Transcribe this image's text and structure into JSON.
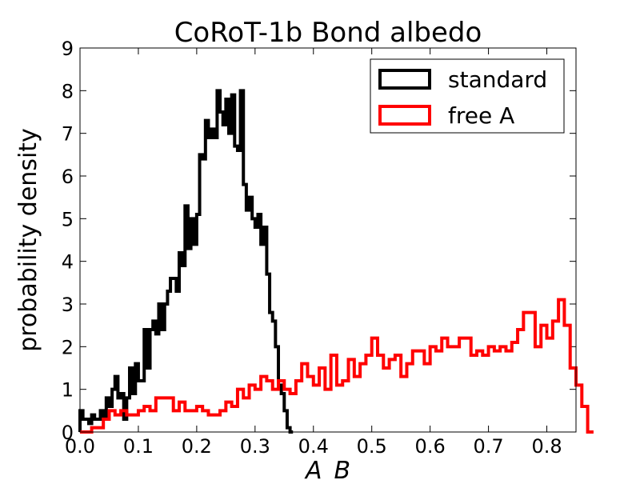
{
  "chart_data": {
    "type": "histogram-step",
    "title": "CoRoT-1b Bond albedo",
    "xlabel": "A_B",
    "ylabel": "probability density",
    "xlim": [
      0.0,
      0.85
    ],
    "ylim": [
      0,
      9
    ],
    "xticks": [
      "0.0",
      "0.1",
      "0.2",
      "0.3",
      "0.4",
      "0.5",
      "0.6",
      "0.7",
      "0.8"
    ],
    "yticks": [
      "0",
      "1",
      "2",
      "3",
      "4",
      "5",
      "6",
      "7",
      "8",
      "9"
    ],
    "legend_position": "top-right",
    "grid": false,
    "series": [
      {
        "name": "standard",
        "color": "#000000",
        "bin_start": 0.0,
        "bin_width": 0.005,
        "values": [
          0.5,
          0.3,
          0.3,
          0.2,
          0.4,
          0.3,
          0.3,
          0.5,
          0.3,
          0.8,
          0.6,
          1.0,
          1.3,
          0.8,
          0.9,
          0.3,
          0.8,
          1.5,
          0.9,
          1.6,
          1.2,
          1.2,
          2.4,
          1.5,
          2.4,
          2.6,
          2.3,
          3.0,
          2.4,
          3.0,
          3.3,
          3.6,
          3.6,
          3.3,
          4.2,
          3.9,
          5.3,
          4.3,
          5.0,
          4.4,
          5.1,
          6.5,
          6.4,
          7.3,
          6.9,
          7.1,
          6.9,
          8.0,
          7.5,
          7.2,
          7.8,
          7.0,
          7.9,
          6.7,
          6.6,
          8.0,
          5.8,
          5.2,
          5.5,
          5.0,
          4.8,
          5.1,
          4.4,
          4.8,
          3.7,
          2.8,
          2.6,
          2.0,
          1.1,
          0.9,
          0.5,
          0.1,
          0.0
        ]
      },
      {
        "name": "free A",
        "color": "#ff0000",
        "bin_start": 0.0,
        "bin_width": 0.01,
        "values": [
          0.0,
          0.0,
          0.1,
          0.1,
          0.3,
          0.5,
          0.4,
          0.5,
          0.4,
          0.4,
          0.5,
          0.6,
          0.5,
          0.8,
          0.8,
          0.8,
          0.5,
          0.7,
          0.5,
          0.5,
          0.6,
          0.5,
          0.4,
          0.4,
          0.5,
          0.7,
          0.6,
          1.0,
          0.8,
          1.1,
          1.0,
          1.3,
          1.2,
          1.0,
          1.2,
          1.0,
          0.9,
          1.2,
          1.6,
          1.3,
          1.1,
          1.5,
          1.0,
          1.8,
          1.1,
          1.2,
          1.7,
          1.3,
          1.6,
          1.8,
          2.2,
          1.8,
          1.5,
          1.7,
          1.8,
          1.3,
          1.6,
          1.9,
          1.9,
          1.6,
          2.0,
          1.9,
          2.2,
          2.0,
          2.0,
          2.2,
          2.2,
          1.8,
          1.9,
          1.8,
          2.0,
          1.9,
          2.0,
          1.9,
          2.1,
          2.4,
          2.8,
          2.8,
          2.0,
          2.5,
          2.2,
          2.6,
          3.1,
          2.5,
          1.5,
          1.1,
          0.6,
          0.0
        ]
      }
    ]
  }
}
